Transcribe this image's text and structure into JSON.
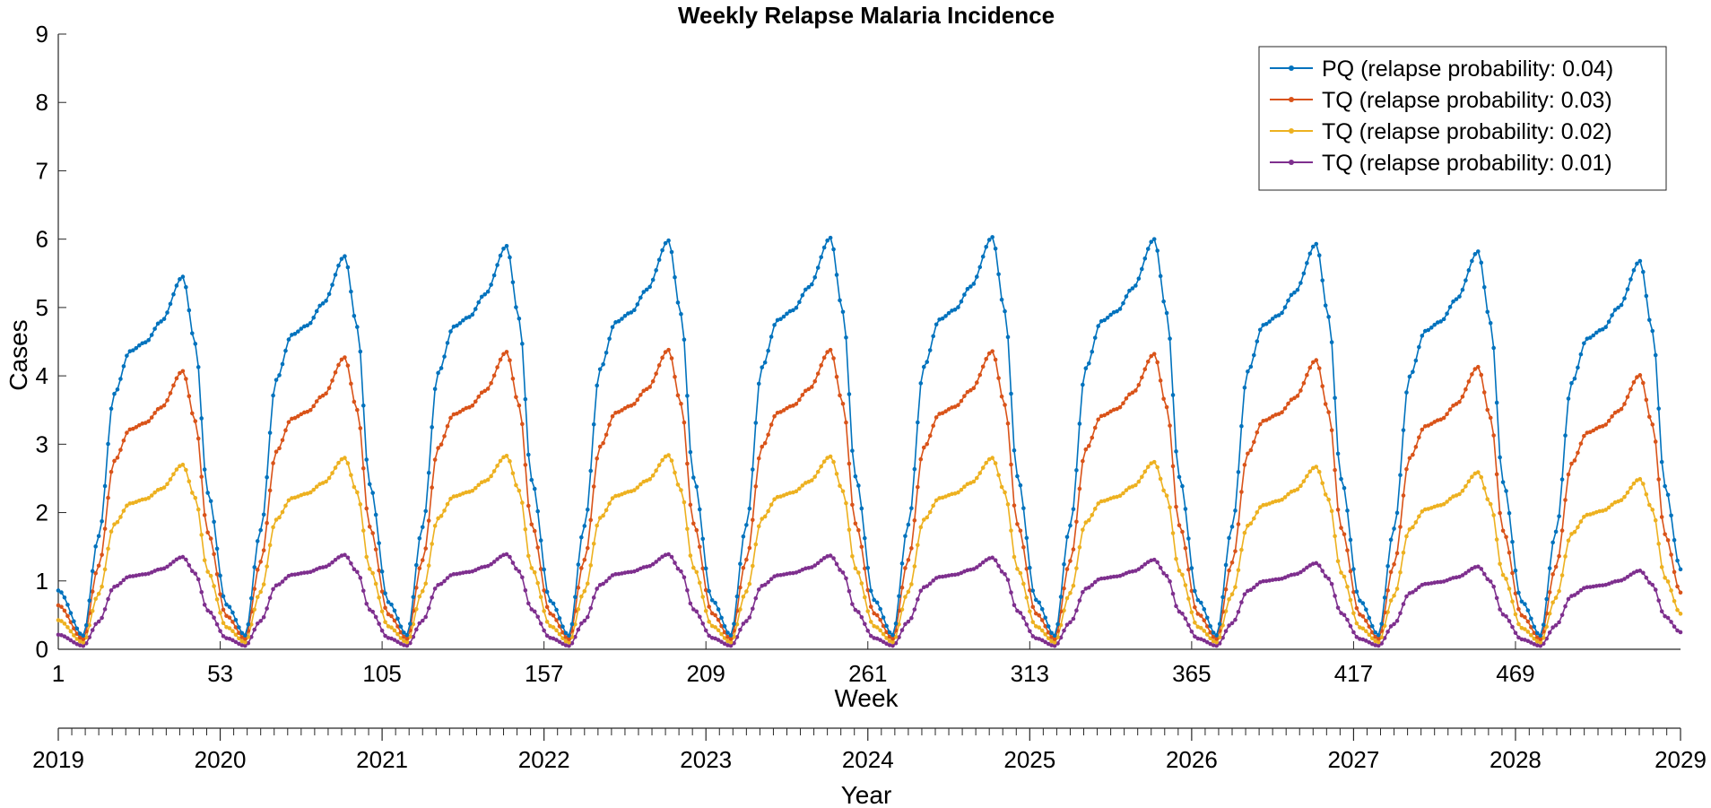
{
  "chart_data": {
    "type": "line",
    "title": "Weekly Relapse Malaria Incidence",
    "xlabel": "Week",
    "ylabel": "Cases",
    "x_range": [
      1,
      522
    ],
    "ylim": [
      0,
      9
    ],
    "y_ticks": [
      "0",
      "1",
      "2",
      "3",
      "4",
      "5",
      "6",
      "7",
      "8",
      "9"
    ],
    "x_ticks": [
      "1",
      "53",
      "105",
      "157",
      "209",
      "261",
      "313",
      "365",
      "417",
      "469"
    ],
    "x_tick_values": [
      1,
      53,
      105,
      157,
      209,
      261,
      313,
      365,
      417,
      469
    ],
    "grid": false,
    "legend_position": "top-right",
    "season": {
      "period_weeks": 52,
      "series_start_value": 0.86,
      "first_peak_week": 39,
      "trough_offset_weeks": 8,
      "shoulder_offset_weeks": 23,
      "peak_offset_weeks": 40
    },
    "series": [
      {
        "name": "PQ (relapse probability: 0.04)",
        "color": "#0072BD",
        "year_peaks": [
          5.45,
          5.75,
          5.9,
          5.98,
          6.02,
          6.03,
          6.0,
          5.93,
          5.82,
          5.68
        ],
        "trough": 0.2,
        "shoulder_fraction": 0.8,
        "end_value": 1.17
      },
      {
        "name": "TQ (relapse probability: 0.03)",
        "color": "#D95319",
        "year_peaks": [
          4.07,
          4.27,
          4.35,
          4.38,
          4.38,
          4.36,
          4.32,
          4.23,
          4.13,
          4.01
        ],
        "trough": 0.15,
        "shoulder_fraction": 0.79,
        "end_value": 0.83
      },
      {
        "name": "TQ (relapse probability: 0.02)",
        "color": "#EDB120",
        "year_peaks": [
          2.7,
          2.8,
          2.83,
          2.84,
          2.82,
          2.8,
          2.74,
          2.67,
          2.59,
          2.49
        ],
        "trough": 0.1,
        "shoulder_fraction": 0.79,
        "end_value": 0.52
      },
      {
        "name": "TQ (relapse probability: 0.01)",
        "color": "#7E2F8E",
        "year_peaks": [
          1.35,
          1.38,
          1.39,
          1.39,
          1.37,
          1.34,
          1.31,
          1.26,
          1.21,
          1.15
        ],
        "trough": 0.05,
        "shoulder_fraction": 0.79,
        "end_value": 0.25
      }
    ],
    "secondary_axis": {
      "label": "Year",
      "ticks": [
        "2019",
        "2020",
        "2021",
        "2022",
        "2023",
        "2024",
        "2025",
        "2026",
        "2027",
        "2028",
        "2029"
      ],
      "tick_weeks": [
        1,
        53,
        105,
        157,
        209,
        261,
        313,
        365,
        417,
        469,
        522
      ],
      "minor_ticks_per_year": 12
    }
  }
}
